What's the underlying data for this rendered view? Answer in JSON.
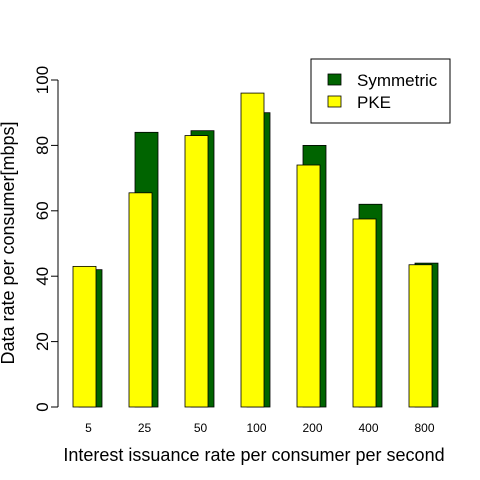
{
  "chart_data": {
    "type": "bar",
    "title": "",
    "xlabel": "Interest issuance rate per consumer per second",
    "ylabel": "Data rate per consumer[mbps]",
    "ylim": [
      0,
      100
    ],
    "yticks": [
      0,
      20,
      40,
      60,
      80,
      100
    ],
    "categories": [
      "5",
      "25",
      "50",
      "100",
      "200",
      "400",
      "800"
    ],
    "series": [
      {
        "name": "Symmetric",
        "color": "#006400",
        "values": [
          42,
          84,
          84.5,
          90,
          80,
          62,
          44
        ]
      },
      {
        "name": "PKE",
        "color": "#ffff00",
        "values": [
          43,
          65.5,
          83,
          96,
          74,
          57.5,
          43.5
        ]
      }
    ],
    "legend_position": "top-right",
    "grid": false
  }
}
